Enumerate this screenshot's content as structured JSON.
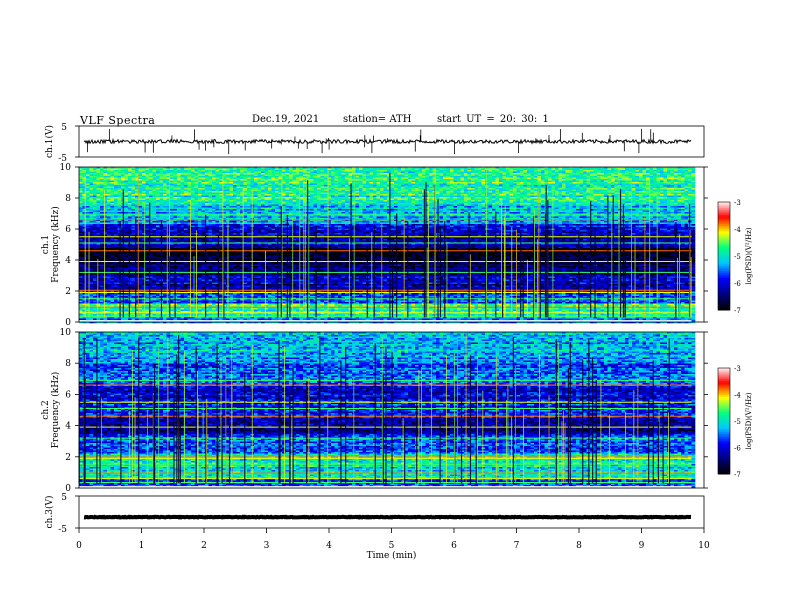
{
  "header": {
    "title": "VLF  Spectra",
    "date": "Dec.19, 2021",
    "station": "station= ATH",
    "start": "start  UT  =   20: 30: 1"
  },
  "chart_data": [
    {
      "type": "line",
      "ylabel": "ch.1(V)",
      "ylim": [
        -5,
        5
      ],
      "yticks": [
        "5",
        "-5"
      ],
      "xlim": [
        0,
        10
      ],
      "approx_level": 0,
      "noise_amplitude": 0.6,
      "line_color": "#000000"
    },
    {
      "type": "heatmap",
      "ylabel": "ch.1\nFrequency  (kHz)",
      "ylabel_lines": [
        "ch.1",
        "Frequency  (kHz)"
      ],
      "ylim": [
        0,
        10
      ],
      "yticks": [
        "0",
        "2",
        "4",
        "6",
        "8",
        "10"
      ],
      "xlim": [
        0,
        10
      ],
      "data_end_min": 9.8,
      "colorbar": {
        "label": "log(PSD)(V²/Hz)",
        "range": [
          -7,
          -3
        ],
        "ticks": [
          "-3",
          "-4",
          "-5",
          "-6",
          "-7"
        ],
        "colormap": [
          "#000000",
          "#000080",
          "#0000ff",
          "#00c8ff",
          "#00ff80",
          "#ffff00",
          "#ff0000",
          "#ffffff"
        ]
      },
      "band_levels": [
        {
          "f": [
            0.0,
            0.4
          ],
          "level": -5.5
        },
        {
          "f": [
            0.4,
            1.2
          ],
          "level": -4.8
        },
        {
          "f": [
            1.2,
            2.0
          ],
          "level": -5.6
        },
        {
          "f": [
            2.0,
            3.0
          ],
          "level": -6.2
        },
        {
          "f": [
            3.0,
            3.8
          ],
          "level": -6.4
        },
        {
          "f": [
            3.8,
            4.8
          ],
          "level": -6.9
        },
        {
          "f": [
            4.8,
            5.6
          ],
          "level": -6.3
        },
        {
          "f": [
            5.6,
            6.4
          ],
          "level": -6.0
        },
        {
          "f": [
            6.4,
            7.6
          ],
          "level": -5.2
        },
        {
          "f": [
            7.6,
            10.0
          ],
          "level": -4.8
        }
      ]
    },
    {
      "type": "heatmap",
      "ylabel": "ch.2\nFrequency  (kHz)",
      "ylabel_lines": [
        "ch.2",
        "Frequency  (kHz)"
      ],
      "ylim": [
        0,
        10
      ],
      "yticks": [
        "0",
        "2",
        "4",
        "6",
        "8",
        "10"
      ],
      "xlim": [
        0,
        10
      ],
      "data_end_min": 9.8,
      "colorbar": {
        "label": "log(PSD)(V²/Hz)",
        "range": [
          -7,
          -3
        ],
        "ticks": [
          "-3",
          "-4",
          "-5",
          "-6",
          "-7"
        ],
        "colormap": [
          "#000000",
          "#000080",
          "#0000ff",
          "#00c8ff",
          "#00ff80",
          "#ffff00",
          "#ff0000",
          "#ffffff"
        ]
      },
      "band_levels": [
        {
          "f": [
            0.0,
            0.6
          ],
          "level": -5.8
        },
        {
          "f": [
            0.6,
            1.6
          ],
          "level": -5.0
        },
        {
          "f": [
            1.6,
            2.3
          ],
          "level": -4.8
        },
        {
          "f": [
            2.3,
            3.5
          ],
          "level": -5.7
        },
        {
          "f": [
            3.5,
            4.6
          ],
          "level": -6.3
        },
        {
          "f": [
            4.6,
            5.6
          ],
          "level": -5.8
        },
        {
          "f": [
            5.6,
            6.6
          ],
          "level": -6.1
        },
        {
          "f": [
            6.6,
            8.0
          ],
          "level": -5.6
        },
        {
          "f": [
            8.0,
            10.0
          ],
          "level": -5.3
        }
      ]
    },
    {
      "type": "line",
      "ylabel": "ch.3(V)",
      "ylim": [
        -5,
        5
      ],
      "yticks": [
        "5",
        "-5"
      ],
      "xlim": [
        0,
        10
      ],
      "xlabel": "Time  (min)",
      "xticks": [
        "0",
        "1",
        "2",
        "3",
        "4",
        "5",
        "6",
        "7",
        "8",
        "9",
        "10"
      ],
      "approx_level": -1.6,
      "noise_amplitude": 0.1,
      "line_color": "#000000"
    }
  ]
}
